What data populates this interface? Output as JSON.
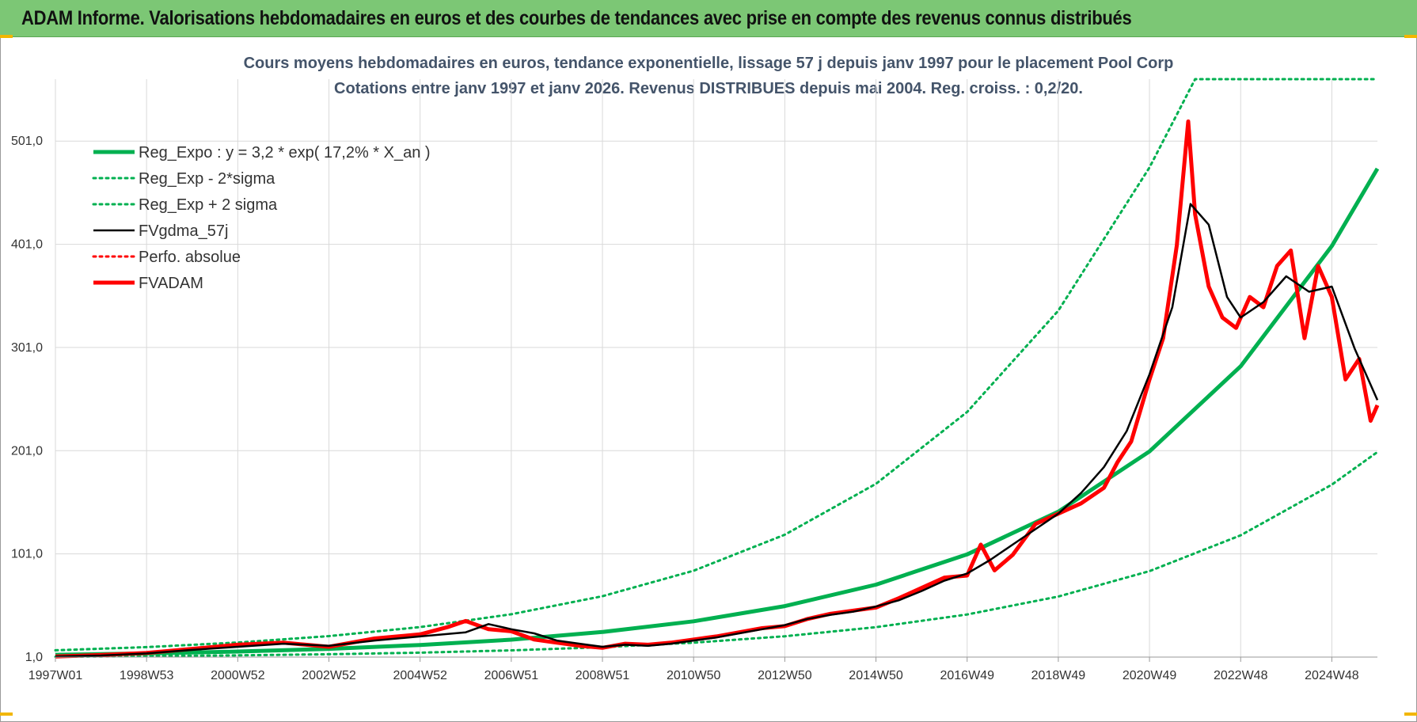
{
  "banner": {
    "title": "ADAM Informe. Valorisations hebdomadaires en euros et des courbes de tendances avec prise en compte des revenus connus distribués",
    "color": "#7cc775"
  },
  "chart_data": {
    "type": "line",
    "title_line1": "Cours moyens hebdomadaires en euros, tendance exponentielle, lissage 57 j depuis janv 1997 pour le placement Pool Corp",
    "title_line2": "Cotations entre janv 1997 et janv 2026. Revenus DISTRIBUES depuis mai 2004. Reg. croiss. : 0,2/20.",
    "xlabel": "",
    "ylabel": "",
    "x_ticks": [
      "1997W01",
      "1998W53",
      "2000W52",
      "2002W52",
      "2004W52",
      "2006W51",
      "2008W51",
      "2010W50",
      "2012W50",
      "2014W50",
      "2016W49",
      "2018W49",
      "2020W49",
      "2022W48",
      "2024W48"
    ],
    "y_ticks": [
      "1,0",
      "101,0",
      "201,0",
      "301,0",
      "401,0",
      "501,0"
    ],
    "xlim": [
      1997.0,
      2026.0
    ],
    "ylim": [
      1,
      561
    ],
    "grid": true,
    "legend_position": "top-left",
    "series": [
      {
        "name": "Reg_Expo : y = 3,2 * exp( 17,2% *  X_an )",
        "color": "#00b050",
        "style": "solid-thick",
        "x": [
          1997.0,
          1999.0,
          2001.0,
          2003.0,
          2005.0,
          2007.0,
          2009.0,
          2011.0,
          2013.0,
          2015.0,
          2017.0,
          2019.0,
          2021.0,
          2023.0,
          2025.0,
          2026.0
        ],
        "y": [
          3.2,
          4.5,
          6.4,
          9.0,
          12.7,
          17.9,
          25.3,
          35.7,
          50.4,
          71.2,
          100.5,
          141.9,
          200.3,
          282.8,
          399.3,
          474.3
        ]
      },
      {
        "name": "Reg_Exp - 2*sigma",
        "color": "#00b050",
        "style": "dotted",
        "x": [
          1997.0,
          1999.0,
          2001.0,
          2003.0,
          2005.0,
          2007.0,
          2009.0,
          2011.0,
          2013.0,
          2015.0,
          2017.0,
          2019.0,
          2021.0,
          2023.0,
          2025.0,
          2026.0
        ],
        "y": [
          1.3,
          1.9,
          2.7,
          3.8,
          5.3,
          7.5,
          10.6,
          15.0,
          21.2,
          30.0,
          42.3,
          59.7,
          84.3,
          119.0,
          168.1,
          199.7
        ]
      },
      {
        "name": "Reg_Exp + 2 sigma",
        "color": "#00b050",
        "style": "dotted",
        "x": [
          1997.0,
          1999.0,
          2001.0,
          2003.0,
          2005.0,
          2007.0,
          2009.0,
          2011.0,
          2013.0,
          2015.0,
          2017.0,
          2019.0,
          2021.0,
          2022.0,
          2022.3,
          2026.0
        ],
        "y": [
          7.6,
          10.7,
          15.1,
          21.3,
          30.1,
          42.5,
          60.0,
          84.7,
          119.6,
          168.9,
          238.5,
          336.7,
          475.5,
          565,
          599,
          599
        ]
      },
      {
        "name": "FVgdma_57j",
        "color": "#000000",
        "style": "solid",
        "x": [
          1997.0,
          1998.0,
          1999.0,
          2000.0,
          2001.0,
          2002.0,
          2003.0,
          2004.0,
          2005.0,
          2006.0,
          2006.5,
          2007.0,
          2007.5,
          2008.0,
          2008.5,
          2009.0,
          2009.5,
          2010.0,
          2010.5,
          2011.0,
          2011.5,
          2012.0,
          2012.5,
          2013.0,
          2013.5,
          2014.0,
          2014.5,
          2015.0,
          2015.5,
          2016.0,
          2016.5,
          2017.0,
          2017.5,
          2018.0,
          2018.5,
          2019.0,
          2019.5,
          2020.0,
          2020.5,
          2021.0,
          2021.5,
          2021.9,
          2022.3,
          2022.7,
          2023.0,
          2023.5,
          2024.0,
          2024.5,
          2025.0,
          2025.5,
          2026.0
        ],
        "y": [
          1.5,
          2.5,
          4.5,
          8,
          11,
          14,
          12,
          17,
          21,
          25,
          33,
          28,
          24,
          17,
          14,
          11,
          13,
          12,
          14,
          17,
          20,
          24,
          28,
          32,
          38,
          42,
          45,
          50,
          56,
          65,
          75,
          82,
          95,
          110,
          125,
          140,
          160,
          185,
          220,
          275,
          340,
          440,
          420,
          350,
          330,
          345,
          370,
          355,
          360,
          300,
          250
        ]
      },
      {
        "name": "Perfo. absolue",
        "color": "#ff0000",
        "style": "dotted",
        "x": [],
        "y": []
      },
      {
        "name": "FVADAM",
        "color": "#ff0000",
        "style": "solid-thick",
        "x": [
          1997.0,
          1998.0,
          1999.0,
          2000.0,
          2001.0,
          2002.0,
          2003.0,
          2004.0,
          2005.0,
          2005.6,
          2006.0,
          2006.5,
          2007.0,
          2007.5,
          2008.0,
          2008.5,
          2009.0,
          2009.5,
          2010.0,
          2010.5,
          2011.0,
          2011.5,
          2012.0,
          2012.5,
          2013.0,
          2013.5,
          2014.0,
          2014.5,
          2015.0,
          2015.5,
          2016.0,
          2016.5,
          2017.0,
          2017.3,
          2017.6,
          2018.0,
          2018.5,
          2019.0,
          2019.5,
          2020.0,
          2020.3,
          2020.6,
          2021.0,
          2021.3,
          2021.6,
          2021.85,
          2022.0,
          2022.3,
          2022.6,
          2022.9,
          2023.2,
          2023.5,
          2023.8,
          2024.1,
          2024.4,
          2024.7,
          2025.0,
          2025.3,
          2025.6,
          2025.85,
          2026.0
        ],
        "y": [
          1.5,
          3,
          5,
          9,
          13,
          15,
          11,
          19,
          23,
          30,
          36,
          28,
          26,
          18,
          15,
          12,
          10,
          14,
          13,
          15,
          18,
          21,
          25,
          29,
          31,
          38,
          43,
          46,
          49,
          58,
          68,
          78,
          80,
          110,
          85,
          100,
          130,
          140,
          150,
          165,
          190,
          210,
          270,
          310,
          400,
          520,
          430,
          360,
          330,
          320,
          350,
          340,
          380,
          395,
          310,
          380,
          350,
          270,
          290,
          230,
          245
        ]
      }
    ]
  }
}
